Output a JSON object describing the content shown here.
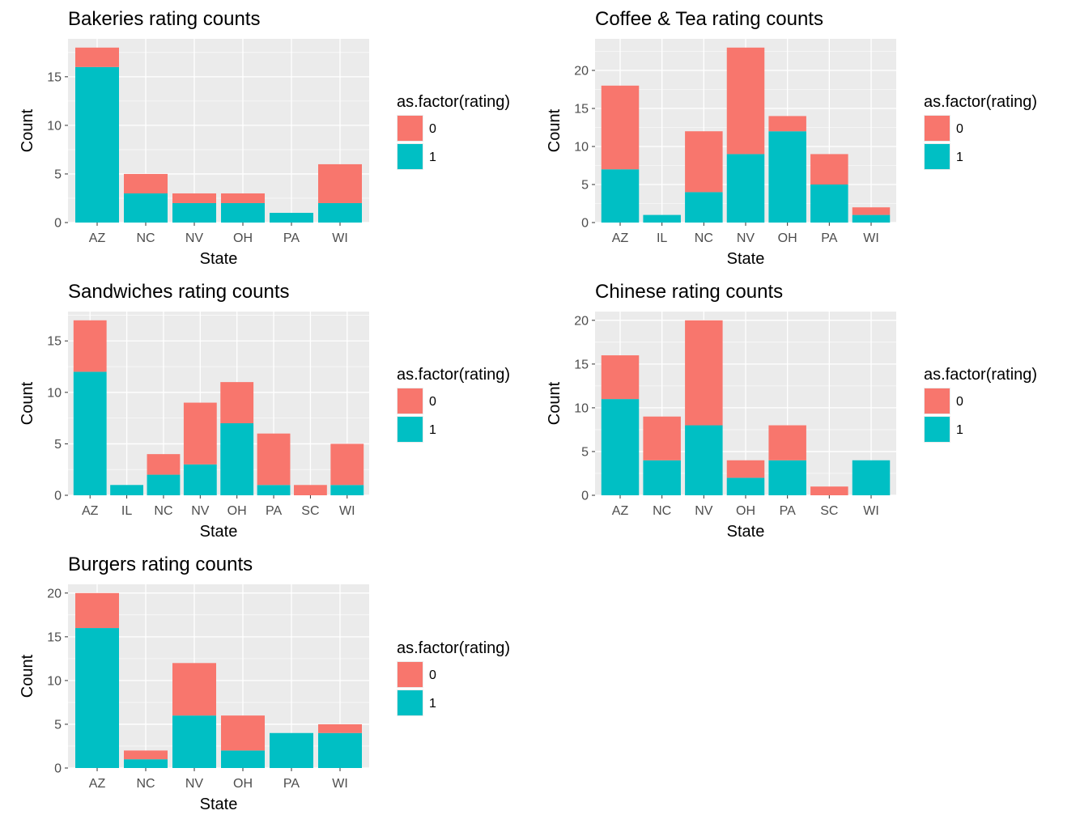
{
  "colors": {
    "rating_0": "#F8766D",
    "rating_1": "#00BFC4",
    "panel_bg": "#EBEBEB",
    "grid": "#FFFFFF",
    "tick_text": "#4D4D4D"
  },
  "legend": {
    "title": "as.factor(rating)",
    "labels": [
      "0",
      "1"
    ]
  },
  "chart_data": [
    {
      "type": "bar",
      "stacked": true,
      "title": "Bakeries rating counts",
      "xlabel": "State",
      "ylabel": "Count",
      "categories": [
        "AZ",
        "NC",
        "NV",
        "OH",
        "PA",
        "WI"
      ],
      "series": [
        {
          "name": "0",
          "values": [
            2,
            2,
            1,
            1,
            0,
            4
          ]
        },
        {
          "name": "1",
          "values": [
            16,
            3,
            2,
            2,
            1,
            2
          ]
        }
      ],
      "ylim": [
        0,
        18.9
      ],
      "yticks": [
        0,
        5,
        10,
        15
      ],
      "legend_position": "right"
    },
    {
      "type": "bar",
      "stacked": true,
      "title": "Coffee & Tea rating counts",
      "xlabel": "State",
      "ylabel": "Count",
      "categories": [
        "AZ",
        "IL",
        "NC",
        "NV",
        "OH",
        "PA",
        "WI"
      ],
      "series": [
        {
          "name": "0",
          "values": [
            11,
            0,
            8,
            14,
            2,
            4,
            1
          ]
        },
        {
          "name": "1",
          "values": [
            7,
            1,
            4,
            9,
            12,
            5,
            1
          ]
        }
      ],
      "ylim": [
        0,
        24.15
      ],
      "yticks": [
        0,
        5,
        10,
        15,
        20
      ],
      "legend_position": "right"
    },
    {
      "type": "bar",
      "stacked": true,
      "title": "Sandwiches rating counts",
      "xlabel": "State",
      "ylabel": "Count",
      "categories": [
        "AZ",
        "IL",
        "NC",
        "NV",
        "OH",
        "PA",
        "SC",
        "WI"
      ],
      "series": [
        {
          "name": "0",
          "values": [
            5,
            0,
            2,
            6,
            4,
            5,
            1,
            4
          ]
        },
        {
          "name": "1",
          "values": [
            12,
            1,
            2,
            3,
            7,
            1,
            0,
            1
          ]
        }
      ],
      "ylim": [
        0,
        17.85
      ],
      "yticks": [
        0,
        5,
        10,
        15
      ],
      "legend_position": "right"
    },
    {
      "type": "bar",
      "stacked": true,
      "title": "Chinese rating counts",
      "xlabel": "State",
      "ylabel": "Count",
      "categories": [
        "AZ",
        "NC",
        "NV",
        "OH",
        "PA",
        "SC",
        "WI"
      ],
      "series": [
        {
          "name": "0",
          "values": [
            5,
            5,
            12,
            2,
            4,
            1,
            0
          ]
        },
        {
          "name": "1",
          "values": [
            11,
            4,
            8,
            2,
            4,
            0,
            4
          ]
        }
      ],
      "ylim": [
        0,
        21
      ],
      "yticks": [
        0,
        5,
        10,
        15,
        20
      ],
      "legend_position": "right"
    },
    {
      "type": "bar",
      "stacked": true,
      "title": "Burgers rating counts",
      "xlabel": "State",
      "ylabel": "Count",
      "categories": [
        "AZ",
        "NC",
        "NV",
        "OH",
        "PA",
        "WI"
      ],
      "series": [
        {
          "name": "0",
          "values": [
            4,
            1,
            6,
            4,
            0,
            1
          ]
        },
        {
          "name": "1",
          "values": [
            16,
            1,
            6,
            2,
            4,
            4
          ]
        }
      ],
      "ylim": [
        0,
        21
      ],
      "yticks": [
        0,
        5,
        10,
        15,
        20
      ],
      "legend_position": "right"
    }
  ]
}
